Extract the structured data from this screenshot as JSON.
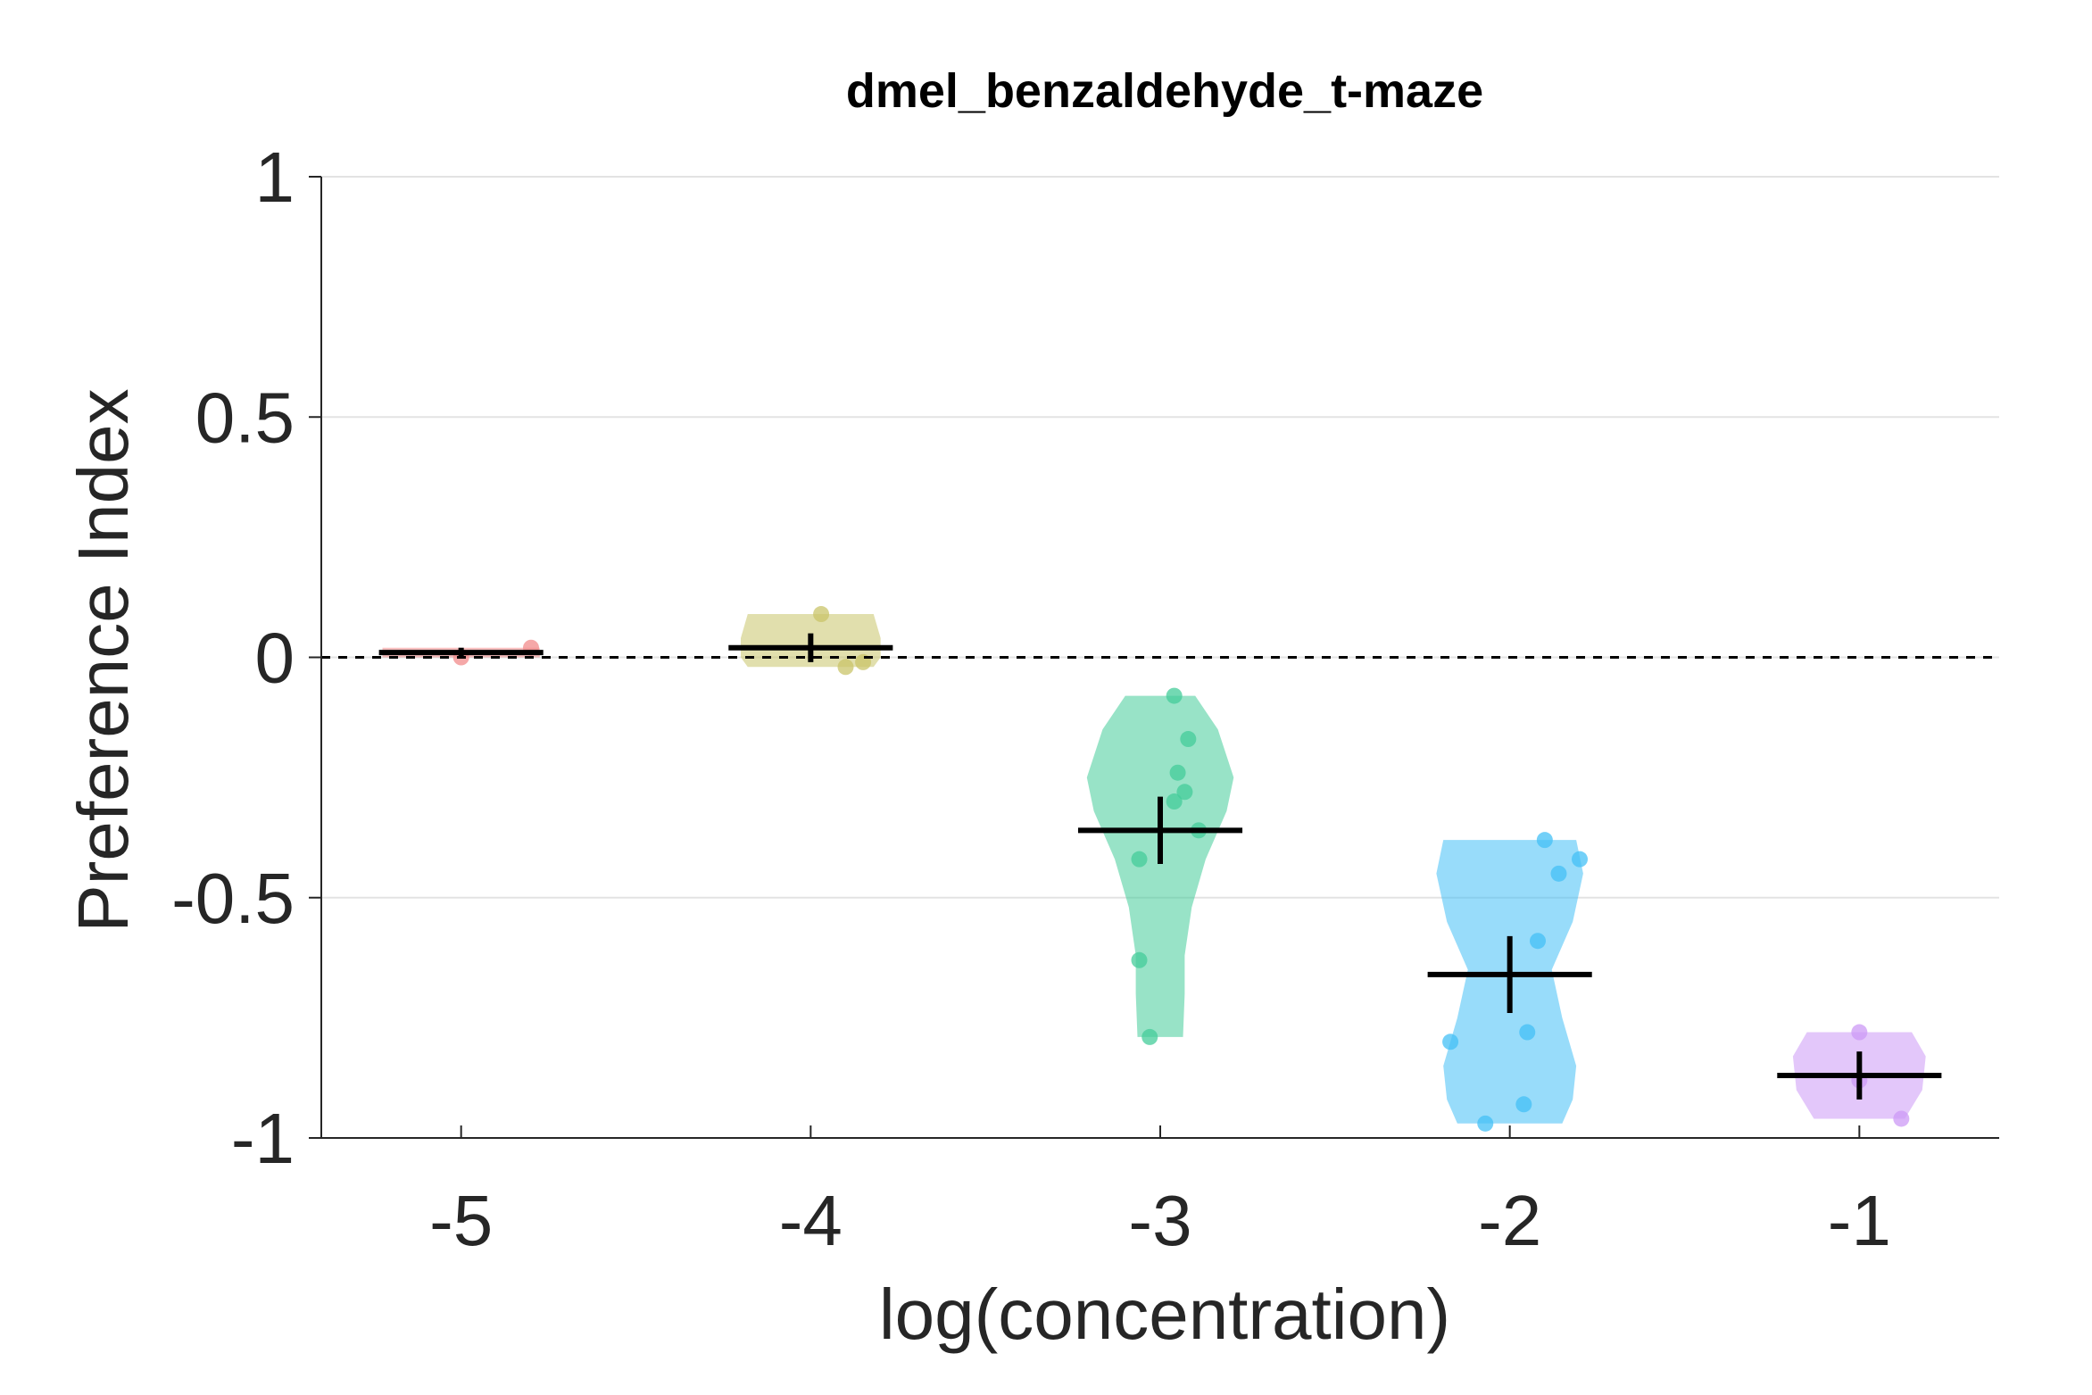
{
  "chart_data": {
    "type": "violin",
    "title": "dmel_benzaldehyde_t-maze",
    "xlabel": "log(concentration)",
    "ylabel": "Preference Index",
    "ylim": [
      -1,
      1
    ],
    "xlim": [
      -5.4,
      -0.6
    ],
    "yticks": [
      {
        "value": 1,
        "label": "1"
      },
      {
        "value": 0.5,
        "label": "0.5"
      },
      {
        "value": 0,
        "label": "0"
      },
      {
        "value": -0.5,
        "label": "-0.5"
      },
      {
        "value": -1,
        "label": "-1"
      }
    ],
    "xticks": [
      {
        "value": -5,
        "label": "-5"
      },
      {
        "value": -4,
        "label": "-4"
      },
      {
        "value": -3,
        "label": "-3"
      },
      {
        "value": -2,
        "label": "-2"
      },
      {
        "value": -1,
        "label": "-1"
      }
    ],
    "grid": "horizontal",
    "reference_line": {
      "y": 0,
      "style": "dashed"
    },
    "groups": [
      {
        "x": -5,
        "color": "#f28b8b",
        "mean": 0.01,
        "error": 0.01,
        "profile": [
          [
            0.0,
            0.45
          ],
          [
            0.02,
            0.45
          ]
        ],
        "points": [
          [
            -4.8,
            0.02
          ],
          [
            -5.0,
            0.0
          ]
        ]
      },
      {
        "x": -4,
        "color": "#c9c46a",
        "mean": 0.02,
        "error": 0.03,
        "profile": [
          [
            -0.02,
            0.36
          ],
          [
            0.0,
            0.4
          ],
          [
            0.04,
            0.4
          ],
          [
            0.09,
            0.36
          ]
        ],
        "points": [
          [
            -3.97,
            0.09
          ],
          [
            -3.9,
            -0.02
          ],
          [
            -3.85,
            -0.01
          ]
        ]
      },
      {
        "x": -3,
        "color": "#44cc99",
        "mean": -0.36,
        "error": 0.07,
        "profile": [
          [
            -0.08,
            0.2
          ],
          [
            -0.15,
            0.33
          ],
          [
            -0.25,
            0.42
          ],
          [
            -0.32,
            0.38
          ],
          [
            -0.42,
            0.26
          ],
          [
            -0.52,
            0.18
          ],
          [
            -0.62,
            0.14
          ],
          [
            -0.7,
            0.14
          ],
          [
            -0.79,
            0.13
          ]
        ],
        "points": [
          [
            -2.96,
            -0.08
          ],
          [
            -2.92,
            -0.17
          ],
          [
            -2.95,
            -0.24
          ],
          [
            -2.93,
            -0.28
          ],
          [
            -2.96,
            -0.3
          ],
          [
            -2.89,
            -0.36
          ],
          [
            -3.06,
            -0.42
          ],
          [
            -3.06,
            -0.63
          ],
          [
            -3.03,
            -0.79
          ]
        ]
      },
      {
        "x": -2,
        "color": "#44c0f5",
        "mean": -0.66,
        "error": 0.08,
        "profile": [
          [
            -0.38,
            0.38
          ],
          [
            -0.45,
            0.42
          ],
          [
            -0.55,
            0.36
          ],
          [
            -0.65,
            0.24
          ],
          [
            -0.75,
            0.3
          ],
          [
            -0.85,
            0.38
          ],
          [
            -0.92,
            0.36
          ],
          [
            -0.97,
            0.3
          ]
        ],
        "points": [
          [
            -1.9,
            -0.38
          ],
          [
            -1.8,
            -0.42
          ],
          [
            -1.86,
            -0.45
          ],
          [
            -1.92,
            -0.59
          ],
          [
            -1.95,
            -0.78
          ],
          [
            -2.17,
            -0.8
          ],
          [
            -1.96,
            -0.93
          ],
          [
            -2.07,
            -0.97
          ]
        ]
      },
      {
        "x": -1,
        "color": "#cc99f5",
        "mean": -0.87,
        "error": 0.05,
        "profile": [
          [
            -0.78,
            0.3
          ],
          [
            -0.83,
            0.38
          ],
          [
            -0.9,
            0.36
          ],
          [
            -0.96,
            0.26
          ]
        ],
        "points": [
          [
            -1.0,
            -0.78
          ],
          [
            -1.0,
            -0.88
          ],
          [
            -0.88,
            -0.96
          ]
        ]
      }
    ]
  }
}
